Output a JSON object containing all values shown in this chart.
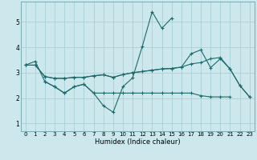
{
  "xlabel": "Humidex (Indice chaleur)",
  "bg_color": "#cce8ec",
  "grid_color": "#aad0d8",
  "line_color": "#1a6b6b",
  "x_values": [
    0,
    1,
    2,
    3,
    4,
    5,
    6,
    7,
    8,
    9,
    10,
    11,
    12,
    13,
    14,
    15,
    16,
    17,
    18,
    19,
    20,
    21,
    22,
    23
  ],
  "series1": [
    3.3,
    3.45,
    2.65,
    2.45,
    2.2,
    2.45,
    2.55,
    2.2,
    1.7,
    1.45,
    2.45,
    2.8,
    4.05,
    5.4,
    4.75,
    5.15,
    null,
    null,
    null,
    null,
    null,
    null,
    null,
    null
  ],
  "series2": [
    null,
    null,
    2.65,
    2.45,
    2.2,
    2.45,
    2.55,
    2.2,
    2.2,
    2.2,
    2.2,
    2.2,
    2.2,
    2.2,
    2.2,
    2.2,
    2.2,
    2.2,
    2.1,
    2.05,
    2.05,
    2.05,
    null,
    null
  ],
  "series3": [
    3.3,
    3.3,
    2.85,
    2.78,
    2.78,
    2.82,
    2.82,
    2.88,
    2.92,
    2.82,
    2.93,
    3.0,
    3.05,
    3.1,
    3.15,
    3.17,
    3.22,
    3.35,
    3.4,
    3.55,
    3.6,
    3.15,
    2.5,
    2.05
  ],
  "series4": [
    3.3,
    3.3,
    2.85,
    2.78,
    2.78,
    2.82,
    2.82,
    2.88,
    2.92,
    2.82,
    2.93,
    3.0,
    3.05,
    3.1,
    3.15,
    3.17,
    3.22,
    3.75,
    3.9,
    3.2,
    3.55,
    3.15,
    2.5,
    2.05
  ],
  "ylim": [
    0.7,
    5.8
  ],
  "xlim": [
    -0.5,
    23.5
  ],
  "yticks": [
    1,
    2,
    3,
    4,
    5
  ],
  "xticks": [
    0,
    1,
    2,
    3,
    4,
    5,
    6,
    7,
    8,
    9,
    10,
    11,
    12,
    13,
    14,
    15,
    16,
    17,
    18,
    19,
    20,
    21,
    22,
    23
  ],
  "xtick_labels": [
    "0",
    "1",
    "2",
    "3",
    "4",
    "5",
    "6",
    "7",
    "8",
    "9",
    "10",
    "11",
    "12",
    "13",
    "14",
    "15",
    "16",
    "17",
    "18",
    "19",
    "20",
    "21",
    "22",
    "23"
  ]
}
